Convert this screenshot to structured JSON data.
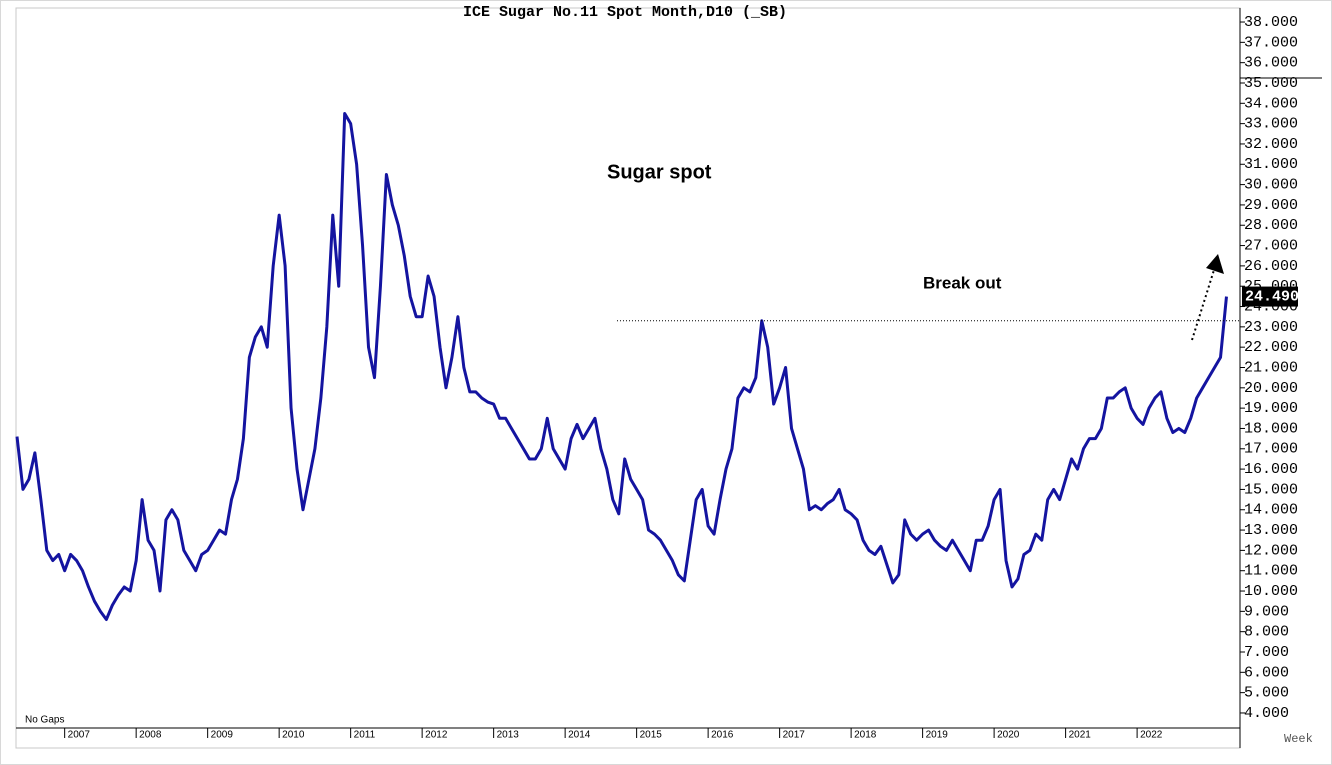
{
  "chart_data": {
    "type": "line",
    "title": "ICE Sugar No.11 Spot Month,D10 (_SB)",
    "annotations": {
      "label": "Sugar spot",
      "breakout": "Break out",
      "gaps": "No Gaps",
      "period": "Week"
    },
    "color": "#1414a0",
    "resistance": 23.3,
    "last_label": {
      "value": 24.49,
      "label": "24.490"
    },
    "ylim": [
      3.26,
      38.69
    ],
    "yticks": [
      {
        "value": 4,
        "label": "4.000"
      },
      {
        "value": 5,
        "label": "5.000"
      },
      {
        "value": 6,
        "label": "6.000"
      },
      {
        "value": 7,
        "label": "7.000"
      },
      {
        "value": 8,
        "label": "8.000"
      },
      {
        "value": 9,
        "label": "9.000"
      },
      {
        "value": 10,
        "label": "10.000"
      },
      {
        "value": 11,
        "label": "11.000"
      },
      {
        "value": 12,
        "label": "12.000"
      },
      {
        "value": 13,
        "label": "13.000"
      },
      {
        "value": 14,
        "label": "14.000"
      },
      {
        "value": 15,
        "label": "15.000"
      },
      {
        "value": 16,
        "label": "16.000"
      },
      {
        "value": 17,
        "label": "17.000"
      },
      {
        "value": 18,
        "label": "18.000"
      },
      {
        "value": 19,
        "label": "19.000"
      },
      {
        "value": 20,
        "label": "20.000"
      },
      {
        "value": 21,
        "label": "21.000"
      },
      {
        "value": 22,
        "label": "22.000"
      },
      {
        "value": 23,
        "label": "23.000"
      },
      {
        "value": 24,
        "label": "24.000"
      },
      {
        "value": 25,
        "label": "25.000"
      },
      {
        "value": 26,
        "label": "26.000"
      },
      {
        "value": 27,
        "label": "27.000"
      },
      {
        "value": 28,
        "label": "28.000"
      },
      {
        "value": 29,
        "label": "29.000"
      },
      {
        "value": 30,
        "label": "30.000"
      },
      {
        "value": 31,
        "label": "31.000"
      },
      {
        "value": 32,
        "label": "32.000"
      },
      {
        "value": 33,
        "label": "33.000"
      },
      {
        "value": 34,
        "label": "34.000"
      },
      {
        "value": 35,
        "label": "35.000"
      },
      {
        "value": 36,
        "label": "36.000"
      },
      {
        "value": 37,
        "label": "37.000"
      },
      {
        "value": 38,
        "label": "38.000"
      }
    ],
    "categories": [
      null,
      null,
      null,
      null,
      null,
      null,
      null,
      null,
      "2007",
      null,
      null,
      null,
      null,
      null,
      null,
      null,
      null,
      null,
      null,
      null,
      "2008",
      null,
      null,
      null,
      null,
      null,
      null,
      null,
      null,
      null,
      null,
      null,
      "2009",
      null,
      null,
      null,
      null,
      null,
      null,
      null,
      null,
      null,
      null,
      null,
      "2010",
      null,
      null,
      null,
      null,
      null,
      null,
      null,
      null,
      null,
      null,
      null,
      "2011",
      null,
      null,
      null,
      null,
      null,
      null,
      null,
      null,
      null,
      null,
      null,
      "2012",
      null,
      null,
      null,
      null,
      null,
      null,
      null,
      null,
      null,
      null,
      null,
      "2013",
      null,
      null,
      null,
      null,
      null,
      null,
      null,
      null,
      null,
      null,
      null,
      "2014",
      null,
      null,
      null,
      null,
      null,
      null,
      null,
      null,
      null,
      null,
      null,
      "2015",
      null,
      null,
      null,
      null,
      null,
      null,
      null,
      null,
      null,
      null,
      null,
      "2016",
      null,
      null,
      null,
      null,
      null,
      null,
      null,
      null,
      null,
      null,
      null,
      "2017",
      null,
      null,
      null,
      null,
      null,
      null,
      null,
      null,
      null,
      null,
      null,
      "2018",
      null,
      null,
      null,
      null,
      null,
      null,
      null,
      null,
      null,
      null,
      null,
      "2019",
      null,
      null,
      null,
      null,
      null,
      null,
      null,
      null,
      null,
      null,
      null,
      "2020",
      null,
      null,
      null,
      null,
      null,
      null,
      null,
      null,
      null,
      null,
      null,
      "2021",
      null,
      null,
      null,
      null,
      null,
      null,
      null,
      null,
      null,
      null,
      null,
      "2022",
      null,
      null,
      null,
      null,
      null,
      null,
      null,
      null,
      null,
      null,
      null,
      null,
      null,
      null,
      null
    ],
    "values": [
      17.6,
      15.0,
      15.5,
      16.8,
      14.5,
      12.0,
      11.5,
      11.8,
      11.0,
      11.8,
      11.5,
      11.0,
      10.2,
      9.5,
      9.0,
      8.6,
      9.3,
      9.8,
      10.2,
      10.0,
      11.5,
      14.5,
      12.5,
      12.0,
      10.0,
      13.5,
      14.0,
      13.5,
      12.0,
      11.5,
      11.0,
      11.8,
      12.0,
      12.5,
      13.0,
      12.8,
      14.5,
      15.5,
      17.5,
      21.5,
      22.5,
      23.0,
      22.0,
      26.0,
      28.5,
      26.0,
      19.0,
      16.0,
      14.0,
      15.5,
      17.0,
      19.5,
      23.0,
      28.5,
      25.0,
      33.5,
      33.0,
      31.0,
      27.0,
      22.0,
      20.5,
      25.0,
      30.5,
      29.0,
      28.0,
      26.5,
      24.5,
      23.5,
      23.5,
      25.5,
      24.5,
      22.0,
      20.0,
      21.5,
      23.5,
      21.0,
      19.8,
      19.8,
      19.5,
      19.3,
      19.2,
      18.5,
      18.5,
      18.0,
      17.5,
      17.0,
      16.5,
      16.5,
      17.0,
      18.5,
      17.0,
      16.5,
      16.0,
      17.5,
      18.2,
      17.5,
      18.0,
      18.5,
      17.0,
      16.0,
      14.5,
      13.8,
      16.5,
      15.5,
      15.0,
      14.5,
      13.0,
      12.8,
      12.5,
      12.0,
      11.5,
      10.8,
      10.5,
      12.5,
      14.5,
      15.0,
      13.2,
      12.8,
      14.5,
      16.0,
      17.0,
      19.5,
      20.0,
      19.8,
      20.5,
      23.3,
      22.0,
      19.2,
      20.0,
      21.0,
      18.0,
      17.0,
      16.0,
      14.0,
      14.2,
      14.0,
      14.3,
      14.5,
      15.0,
      14.0,
      13.8,
      13.5,
      12.5,
      12.0,
      11.8,
      12.2,
      11.3,
      10.4,
      10.8,
      13.5,
      12.8,
      12.5,
      12.8,
      13.0,
      12.5,
      12.2,
      12.0,
      12.5,
      12.0,
      11.5,
      11.0,
      12.5,
      12.5,
      13.2,
      14.5,
      15.0,
      11.5,
      10.2,
      10.6,
      11.8,
      12.0,
      12.8,
      12.5,
      14.5,
      15.0,
      14.5,
      15.5,
      16.5,
      16.0,
      17.0,
      17.5,
      17.5,
      18.0,
      19.5,
      19.5,
      19.8,
      20.0,
      19.0,
      18.5,
      18.2,
      19.0,
      19.5,
      19.8,
      18.5,
      17.8,
      18.0,
      17.8,
      18.5,
      19.5,
      20.0,
      20.5,
      21.0,
      21.5,
      24.49
    ]
  }
}
